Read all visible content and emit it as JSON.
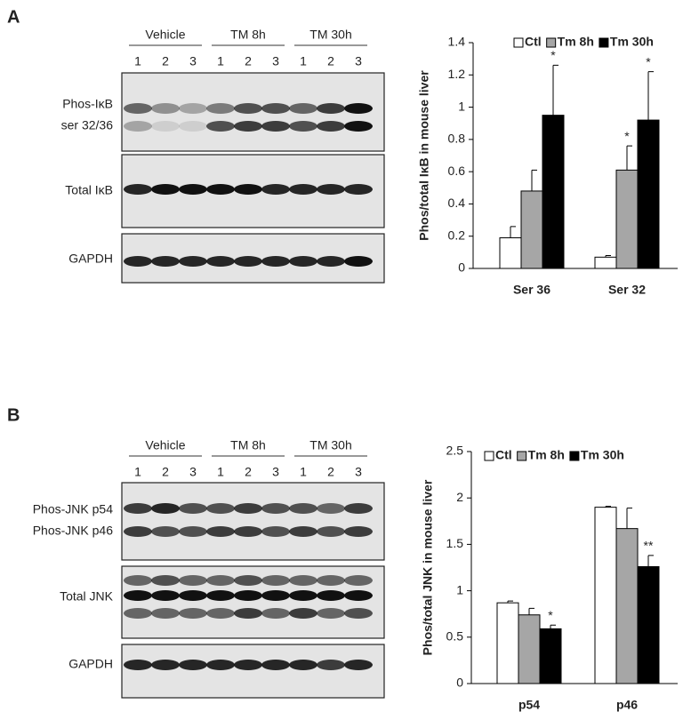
{
  "panels": [
    {
      "label": "A",
      "groups": [
        "Vehicle",
        "TM 8h",
        "TM 30h"
      ],
      "lanes": [
        "1",
        "2",
        "3",
        "1",
        "2",
        "3",
        "1",
        "2",
        "3"
      ],
      "blots": [
        {
          "labels": [
            "Phos-IκB",
            "ser 32/36"
          ]
        },
        {
          "labels": [
            "Total IκB"
          ]
        },
        {
          "labels": [
            "GAPDH"
          ]
        }
      ]
    },
    {
      "label": "B",
      "groups": [
        "Vehicle",
        "TM 8h",
        "TM 30h"
      ],
      "lanes": [
        "1",
        "2",
        "3",
        "1",
        "2",
        "3",
        "1",
        "2",
        "3"
      ],
      "blots": [
        {
          "labels": [
            "Phos-JNK p54",
            "Phos-JNK p46"
          ]
        },
        {
          "labels": [
            "Total JNK"
          ]
        },
        {
          "labels": [
            "GAPDH"
          ]
        }
      ]
    }
  ],
  "chart_data": [
    {
      "type": "bar",
      "y_label": "Phos/total IκB in mouse liver",
      "categories": [
        "Ser 36",
        "Ser 32"
      ],
      "series": [
        {
          "name": "Ctl",
          "color": "#ffffff",
          "values": [
            0.19,
            0.07
          ],
          "errors": [
            0.07,
            0.01
          ],
          "annotations": [
            null,
            null
          ]
        },
        {
          "name": "Tm 8h",
          "color": "#a6a6a6",
          "values": [
            0.48,
            0.61
          ],
          "errors": [
            0.13,
            0.15
          ],
          "annotations": [
            null,
            "*"
          ]
        },
        {
          "name": "Tm 30h",
          "color": "#000000",
          "values": [
            0.95,
            0.92
          ],
          "errors": [
            0.31,
            0.3
          ],
          "annotations": [
            "*",
            "*"
          ]
        }
      ],
      "ylim": [
        0,
        1.4
      ],
      "yticks": [
        0,
        0.2,
        0.4,
        0.6,
        0.8,
        1,
        1.2,
        1.4
      ],
      "legend": "top"
    },
    {
      "type": "bar",
      "y_label": "Phos/total JNK in mouse liver",
      "categories": [
        "p54",
        "p46"
      ],
      "series": [
        {
          "name": "Ctl",
          "color": "#ffffff",
          "values": [
            0.87,
            1.9
          ],
          "errors": [
            0.02,
            0.01
          ],
          "annotations": [
            null,
            null
          ]
        },
        {
          "name": "Tm 8h",
          "color": "#a6a6a6",
          "values": [
            0.74,
            1.67
          ],
          "errors": [
            0.07,
            0.22
          ],
          "annotations": [
            null,
            null
          ]
        },
        {
          "name": "Tm 30h",
          "color": "#000000",
          "values": [
            0.59,
            1.26
          ],
          "errors": [
            0.04,
            0.12
          ],
          "annotations": [
            "*",
            "**"
          ]
        }
      ],
      "ylim": [
        0,
        2.5
      ],
      "yticks": [
        0,
        0.5,
        1,
        1.5,
        2,
        2.5
      ],
      "legend": "top"
    }
  ]
}
